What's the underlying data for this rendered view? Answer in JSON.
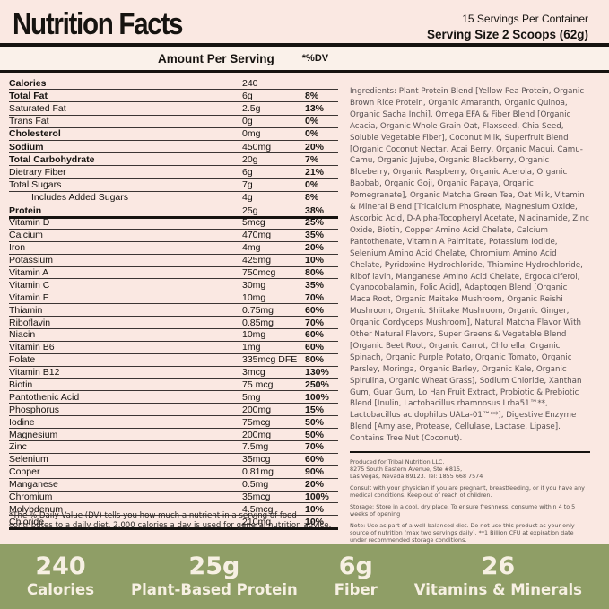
{
  "header": {
    "title": "Nutrition Facts",
    "servings_per_container": "15 Servings Per Container",
    "serving_size": "Serving Size 2 Scoops (62g)"
  },
  "table": {
    "amount_header": "Amount Per Serving",
    "dv_header": "*%DV",
    "macro_rows": [
      {
        "label": "Calories",
        "amount": "240",
        "dv": "",
        "bold": true
      },
      {
        "label": "Total Fat",
        "amount": "6g",
        "dv": "8%",
        "bold": true
      },
      {
        "label": "Saturated Fat",
        "amount": "2.5g",
        "dv": "13%"
      },
      {
        "label": "Trans Fat",
        "amount": "0g",
        "dv": "0%"
      },
      {
        "label": "Cholesterol",
        "amount": "0mg",
        "dv": "0%",
        "bold": true
      },
      {
        "label": "Sodium",
        "amount": "450mg",
        "dv": "20%",
        "bold": true
      },
      {
        "label": "Total Carbohydrate",
        "amount": "20g",
        "dv": "7%",
        "bold": true
      },
      {
        "label": "Dietrary Fiber",
        "amount": "6g",
        "dv": "21%"
      },
      {
        "label": "Total Sugars",
        "amount": "7g",
        "dv": "0%"
      },
      {
        "label": "Includes Added Sugars",
        "amount": "4g",
        "dv": "8%",
        "indent": true
      },
      {
        "label": "Protein",
        "amount": "25g",
        "dv": "38%",
        "bold": true
      }
    ],
    "micro_rows": [
      {
        "label": "Vitamin D",
        "amount": "5mcg",
        "dv": "25%"
      },
      {
        "label": "Calcium",
        "amount": "470mg",
        "dv": "35%"
      },
      {
        "label": "Iron",
        "amount": "4mg",
        "dv": "20%"
      },
      {
        "label": "Potassium",
        "amount": "425mg",
        "dv": "10%"
      },
      {
        "label": "Vitamin A",
        "amount": "750mcg",
        "dv": "80%"
      },
      {
        "label": "Vitamin C",
        "amount": "30mg",
        "dv": "35%"
      },
      {
        "label": "Vitamin E",
        "amount": "10mg",
        "dv": "70%"
      },
      {
        "label": "Thiamin",
        "amount": "0.75mg",
        "dv": "60%"
      },
      {
        "label": "Riboflavin",
        "amount": "0.85mg",
        "dv": "70%"
      },
      {
        "label": "Niacin",
        "amount": "10mg",
        "dv": "60%"
      },
      {
        "label": "Vitamin B6",
        "amount": "1mg",
        "dv": "60%"
      },
      {
        "label": "Folate",
        "amount": "335mcg DFE",
        "dv": "80%"
      },
      {
        "label": "Vitamin B12",
        "amount": "3mcg",
        "dv": "130%"
      },
      {
        "label": "Biotin",
        "amount": "75 mcg",
        "dv": "250%"
      },
      {
        "label": "Pantothenic Acid",
        "amount": "5mg",
        "dv": "100%"
      },
      {
        "label": "Phosphorus",
        "amount": "200mg",
        "dv": "15%"
      },
      {
        "label": "Iodine",
        "amount": "75mcg",
        "dv": "50%"
      },
      {
        "label": "Magnesium",
        "amount": "200mg",
        "dv": "50%"
      },
      {
        "label": "Zinc",
        "amount": "7.5mg",
        "dv": "70%"
      },
      {
        "label": "Selenium",
        "amount": "35mcg",
        "dv": "60%"
      },
      {
        "label": "Copper",
        "amount": "0.81mg",
        "dv": "90%"
      },
      {
        "label": "Manganese",
        "amount": "0.5mg",
        "dv": "20%"
      },
      {
        "label": "Chromium",
        "amount": "35mcg",
        "dv": "100%"
      },
      {
        "label": "Molybdenum",
        "amount": "4.5mcg",
        "dv": "10%"
      },
      {
        "label": "Chloride",
        "amount": "210mg",
        "dv": "10%"
      }
    ],
    "footnote": "*The % Daily Value (DV) tells you how much a nutrient in a serving of food contributes to a daily diet. 2,000 calories a day is used for general nutrition advice."
  },
  "ingredients": "Ingredients: Plant Protein Blend [Yellow Pea Protein, Organic Brown Rice Protein, Organic Amaranth, Organic Quinoa, Organic Sacha Inchi], Omega EFA & Fiber Blend [Organic Acacia, Organic Whole Grain Oat, Flaxseed, Chia Seed, Soluble Vegetable Fiber], Coconut Milk, Superfruit Blend [Organic Coconut Nectar, Acai Berry, Organic Maqui, Camu-Camu, Organic Jujube, Organic Blackberry, Organic Blueberry, Organic Raspberry, Organic Acerola, Organic Baobab, Organic Goji, Organic Papaya, Organic Pomegranate], Organic Matcha Green Tea, Oat Milk, Vitamin & Mineral Blend [Tricalcium Phosphate, Magnesium Oxide, Ascorbic Acid, D-Alpha-Tocopheryl Acetate, Niacinamide, Zinc Oxide, Biotin, Copper Amino Acid Chelate, Calcium Pantothenate, Vitamin A Palmitate, Potassium Iodide, Selenium Amino Acid Chelate, Chromium Amino Acid Chelate, Pyridoxine Hydrochloride, Thiamine Hydrochloride, Ribof lavin, Manganese Amino Acid Chelate, Ergocalciferol, Cyanocobalamin, Folic Acid], Adaptogen Blend [Organic Maca Root, Organic Maitake Mushroom, Organic Reishi Mushroom, Organic Shiitake Mushroom, Organic Ginger, Organic Cordyceps Mushroom], Natural Matcha Flavor With Other Natural Flavors, Super Greens & Vegetable Blend [Organic Beet Root, Organic Carrot, Chlorella, Organic Spinach, Organic Purple Potato, Organic Tomato, Organic Parsley, Moringa, Organic Barley, Organic Kale, Organic Spirulina, Organic Wheat Grass], Sodium Chloride, Xanthan Gum, Guar Gum, Lo Han Fruit Extract, Probiotic & Prebiotic Blend [Inulin, Lactobacillus rhamnosus Lrha51™**, Lactobacillus acidophilus UALa-01™**], Digestive Enzyme Blend [Amylase, Protease, Cellulase, Lactase, Lipase]. Contains Tree Nut (Coconut).",
  "producer": {
    "lines": [
      "Produced for Tribal Nutrition LLC.",
      "8275 South Eastern Avenue, Ste #815,",
      "Las Vegas, Nevada 89123. Tel: 1855 668 7574"
    ]
  },
  "notices": {
    "consult": "Consult with your physician if you are pregnant, breastfeeding, or if you have any medical conditions. Keep out of reach of children.",
    "storage": "Storage: Store in a cool, dry place. To ensure freshness, consume within 4 to 5 weeks of opening",
    "note": "Note: Use as part of a well-balanced diet. Do not use this product as your only source of nutrition (max two servings daily). **1 Billion CFU at expiration date under recommended storage conditions."
  },
  "footer": {
    "stats": [
      {
        "value": "240",
        "label": "Calories"
      },
      {
        "value": "25g",
        "label": "Plant-Based Protein"
      },
      {
        "value": "6g",
        "label": "Fiber"
      },
      {
        "value": "26",
        "label": "Vitamins & Minerals"
      }
    ]
  },
  "colors": {
    "background": "#fae8e2",
    "bar_background": "#faf1ea",
    "footer_background": "#8f9e66",
    "footer_text": "#f7f0e3",
    "text": "#161310"
  }
}
